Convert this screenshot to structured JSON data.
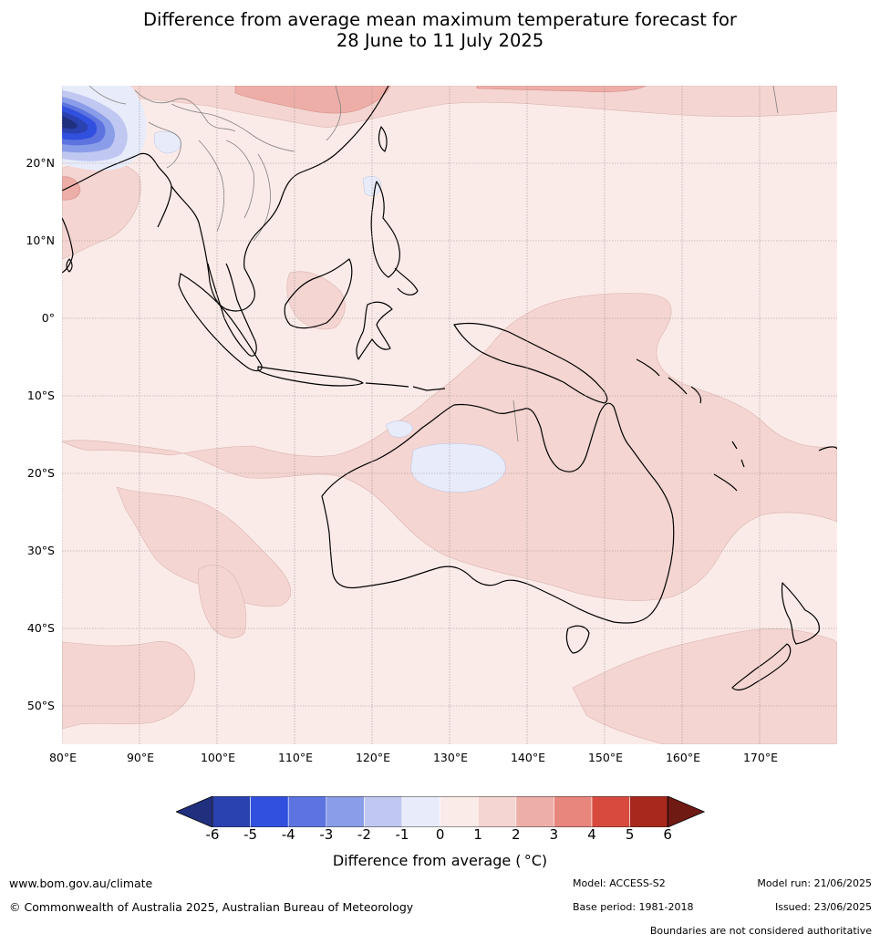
{
  "title": {
    "line1": "Difference from average mean maximum temperature forecast for",
    "line2": "28 June to 11 July 2025"
  },
  "map": {
    "latitude_labels": [
      "20°N",
      "10°N",
      "0°",
      "10°S",
      "20°S",
      "30°S",
      "40°S",
      "50°S"
    ],
    "longitude_labels": [
      "80°E",
      "90°E",
      "100°E",
      "110°E",
      "120°E",
      "130°E",
      "140°E",
      "150°E",
      "160°E",
      "170°E"
    ],
    "colors": {
      "ocean_base": "#fbebe8",
      "warm_1_2": "#f4d5d1",
      "warm_2_3": "#eeaea8",
      "cool_0_minus1": "#e8ecfa",
      "coastline": "#000000",
      "borders": "#808080",
      "gridlines": "#9a9090"
    }
  },
  "colorbar": {
    "ticks": [
      "-6",
      "-5",
      "-4",
      "-3",
      "-2",
      "-1",
      "0",
      "1",
      "2",
      "3",
      "4",
      "5",
      "6"
    ],
    "colors": [
      "#20307e",
      "#2a41b0",
      "#3150de",
      "#5c73e0",
      "#8a9de8",
      "#c0c8f2",
      "#e8ecfa",
      "#fbebe8",
      "#f4d5d1",
      "#eeaea8",
      "#e8857d",
      "#d84a3e",
      "#a8281d",
      "#701a14"
    ],
    "label": "Difference from average ( °C)"
  },
  "footer": {
    "website": "www.bom.gov.au/climate",
    "copyright": "© Commonwealth of Australia 2025, Australian Bureau of Meteorology",
    "model": "Model: ACCESS-S2",
    "base_period": "Base period: 1981-2018",
    "model_run": "Model run: 21/06/2025",
    "issued": "Issued: 23/06/2025",
    "disclaimer": "Boundaries are not considered authoritative"
  }
}
